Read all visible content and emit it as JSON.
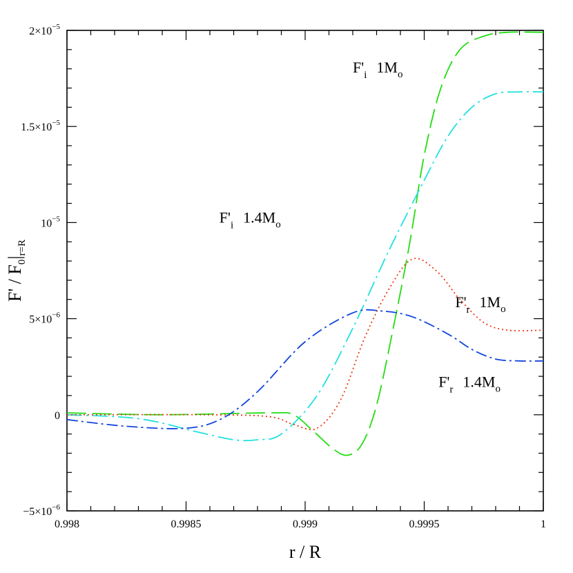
{
  "chart_data": {
    "type": "line",
    "xlabel": "r / R",
    "ylabel": {
      "main": "F' / F",
      "sub0": "0",
      "subEval": "r=R"
    },
    "xlim": [
      0.998,
      1.0
    ],
    "ylim": [
      -5e-06,
      2e-05
    ],
    "x_ticks": [
      {
        "value": 0.998,
        "label": "0.998"
      },
      {
        "value": 0.9985,
        "label": "0.9985"
      },
      {
        "value": 0.999,
        "label": "0.999"
      },
      {
        "value": 0.9995,
        "label": "0.9995"
      },
      {
        "value": 1.0,
        "label": "1"
      }
    ],
    "y_ticks": [
      {
        "value": -5e-06,
        "mant": "−5×10",
        "exp": "−6"
      },
      {
        "value": 0,
        "mant": "0",
        "exp": ""
      },
      {
        "value": 5e-06,
        "mant": "5×10",
        "exp": "−6"
      },
      {
        "value": 1e-05,
        "mant": "10",
        "exp": "−5"
      },
      {
        "value": 1.5e-05,
        "mant": "1.5×10",
        "exp": "−5"
      },
      {
        "value": 2e-05,
        "mant": "2×10",
        "exp": "−5"
      }
    ],
    "series": [
      {
        "color": "#22dd11",
        "dash": "28,9",
        "x": [
          0.998,
          0.9984,
          0.99885,
          0.99895,
          0.99903,
          0.99912,
          0.99918,
          0.99924,
          0.9993,
          0.99937,
          0.99944,
          0.9995,
          0.99957,
          0.99965,
          0.99975,
          0.99985,
          1.0
        ],
        "y": [
          1e-07,
          0,
          1e-07,
          0,
          -8e-07,
          -1.8e-06,
          -2.1e-06,
          -1.5e-06,
          5e-07,
          4.5e-06,
          9e-06,
          1.35e-05,
          1.7e-05,
          1.9e-05,
          1.97e-05,
          1.99e-05,
          1.99e-05
        ]
      },
      {
        "color": "#22e0e0",
        "dash": "22,6,3,6",
        "x": [
          0.998,
          0.9983,
          0.99855,
          0.9987,
          0.9988,
          0.9989,
          0.99905,
          0.9992,
          0.99935,
          0.9995,
          0.9996,
          0.9997,
          0.9998,
          0.9999,
          1.0
        ],
        "y": [
          0,
          -2e-07,
          -9e-07,
          -1.3e-06,
          -1.3e-06,
          -1e-06,
          1e-06,
          4.5e-06,
          8.5e-06,
          1.22e-05,
          1.45e-05,
          1.6e-05,
          1.67e-05,
          1.68e-05,
          1.68e-05
        ]
      },
      {
        "color": "#ee3311",
        "dash": "2,4",
        "x": [
          0.998,
          0.9986,
          0.99885,
          0.99895,
          0.99905,
          0.99915,
          0.99925,
          0.99935,
          0.99945,
          0.99955,
          0.99965,
          0.99975,
          0.99985,
          1.0
        ],
        "y": [
          0,
          0,
          -1e-07,
          -5e-07,
          -7e-07,
          8e-07,
          4e-06,
          6.5e-06,
          8.1e-06,
          7.5e-06,
          6e-06,
          4.8e-06,
          4.4e-06,
          4.4e-06
        ]
      },
      {
        "color": "#1144dd",
        "dash": "16,5,3,5",
        "x": [
          0.998,
          0.99825,
          0.9985,
          0.99865,
          0.9988,
          0.999,
          0.9992,
          0.99932,
          0.99945,
          0.9996,
          0.9997,
          0.9998,
          0.9999,
          1.0
        ],
        "y": [
          -2.5e-07,
          -6e-07,
          -7e-07,
          -2e-07,
          1.2e-06,
          3.8e-06,
          5.3e-06,
          5.4e-06,
          5.1e-06,
          4.2e-06,
          3.4e-06,
          2.9e-06,
          2.8e-06,
          2.8e-06
        ]
      }
    ],
    "annotations": [
      {
        "x": 0.9992,
        "y": 1.78e-05,
        "main": "F'",
        "sub": "i",
        "tail": "1M",
        "tailSub": "o"
      },
      {
        "x": 0.99864,
        "y": 1e-05,
        "main": "F'",
        "sub": "i",
        "tail": "1.4M",
        "tailSub": "o"
      },
      {
        "x": 0.99963,
        "y": 5.6e-06,
        "main": "F'",
        "sub": "r",
        "tail": "1M",
        "tailSub": "o"
      },
      {
        "x": 0.99956,
        "y": 1.45e-06,
        "main": "F'",
        "sub": "r",
        "tail": "1.4M",
        "tailSub": "o"
      }
    ]
  }
}
